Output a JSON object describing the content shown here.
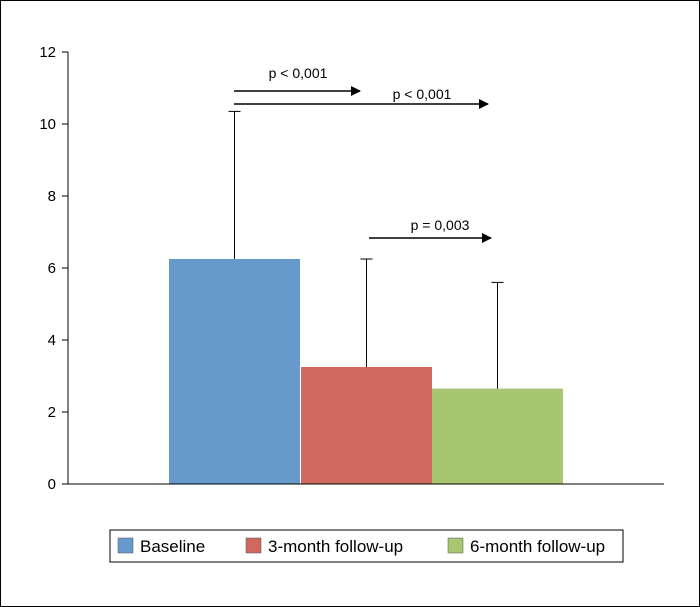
{
  "chart_data": {
    "type": "bar",
    "categories": [
      "Baseline",
      "3-month follow-up",
      "6-month follow-up"
    ],
    "values": [
      6.25,
      3.25,
      2.65
    ],
    "error_bars": [
      4.1,
      3.0,
      2.95
    ],
    "colors": [
      "#6699cc",
      "#d06860",
      "#a8c570"
    ],
    "ylim": [
      0,
      12
    ],
    "yticks": [
      0,
      2,
      4,
      6,
      8,
      10,
      12
    ],
    "ytick_labels": [
      "0",
      "2",
      "4",
      "6",
      "8",
      "10",
      "12"
    ],
    "title": "",
    "xlabel": "",
    "ylabel": "",
    "legend": {
      "position": "bottom",
      "entries": [
        "Baseline",
        "3-month follow-up",
        "6-month follow-up"
      ]
    },
    "annotations": [
      {
        "label": "p < 0,001",
        "from": "Baseline",
        "to": "3-month follow-up"
      },
      {
        "label": "p < 0,001",
        "from": "Baseline",
        "to": "6-month follow-up"
      },
      {
        "label": "p = 0,003",
        "from": "3-month follow-up",
        "to": "6-month follow-up"
      }
    ],
    "grid": false
  }
}
